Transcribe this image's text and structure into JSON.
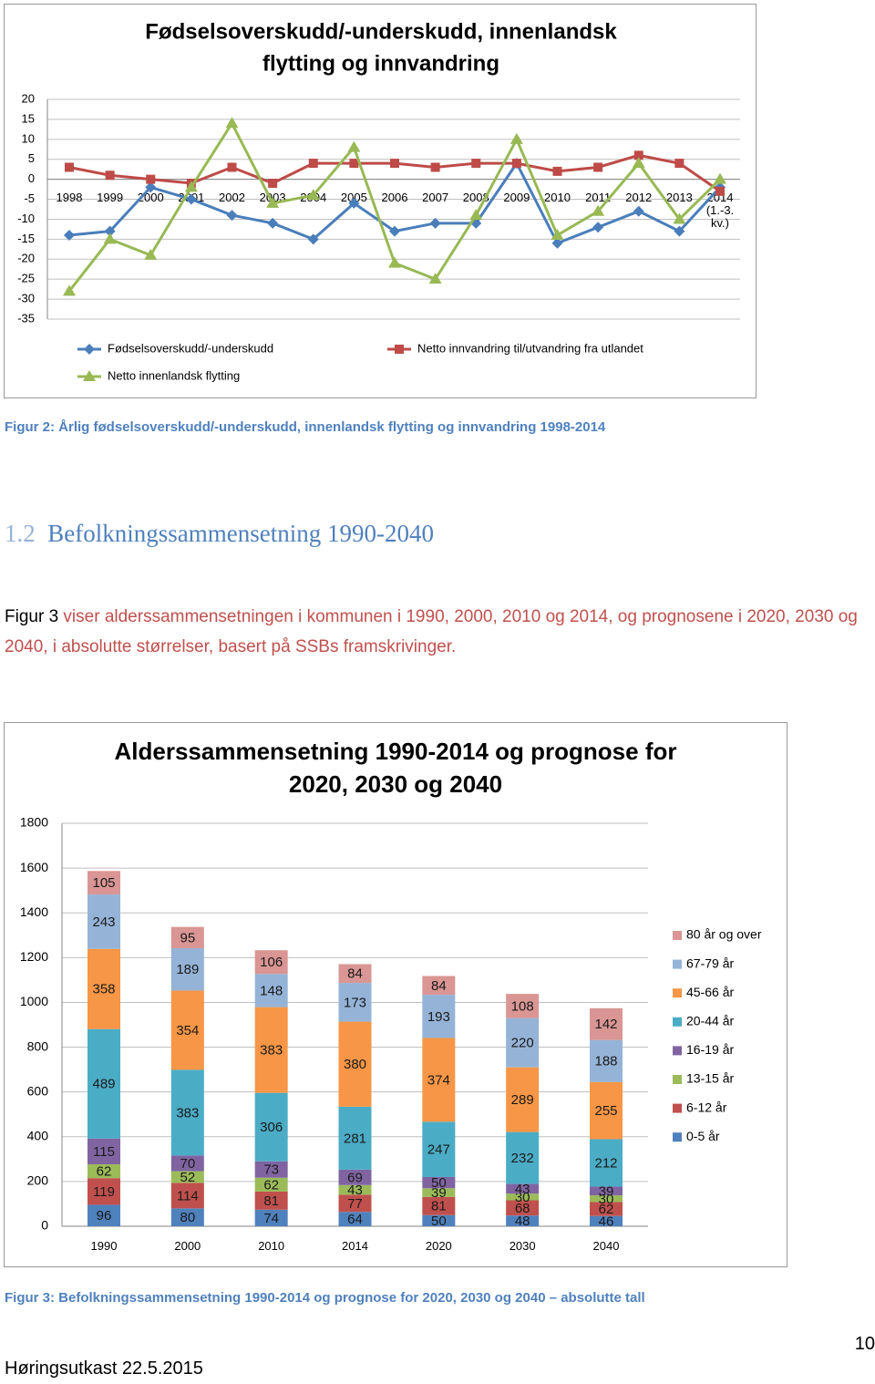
{
  "chart_data": [
    {
      "type": "line",
      "title": [
        "Fødselsoverskudd/-underskudd,  innenlandsk",
        "flytting og  innvandring"
      ],
      "categories": [
        "1998",
        "1999",
        "2000",
        "2001",
        "2002",
        "2003",
        "2004",
        "2005",
        "2006",
        "2007",
        "2008",
        "2009",
        "2010",
        "2011",
        "2012",
        "2013",
        "2014 (1.-3. kv.)"
      ],
      "series": [
        {
          "name": "Fødselsoverskudd/-underskudd",
          "color": "#4a7ebb",
          "marker": "diamond",
          "values": [
            -14,
            -13,
            -2,
            -5,
            -9,
            -11,
            -15,
            -6,
            -13,
            -11,
            -11,
            4,
            -16,
            -12,
            -8,
            -13,
            -2
          ]
        },
        {
          "name": "Netto innvandring til/utvandring fra utlandet",
          "color": "#be4b48",
          "marker": "square",
          "values": [
            3,
            1,
            0,
            -1,
            3,
            -1,
            4,
            4,
            4,
            3,
            4,
            4,
            2,
            3,
            6,
            4,
            -3
          ]
        },
        {
          "name": "Netto innenlandsk flytting",
          "color": "#98b954",
          "marker": "triangle",
          "values": [
            -28,
            -15,
            -19,
            -2,
            14,
            -6,
            -4,
            8,
            -21,
            -25,
            -9,
            10,
            -14,
            -8,
            4,
            -10,
            0
          ]
        }
      ],
      "ylim": [
        -35,
        20
      ],
      "yticks": [
        -35,
        -30,
        -25,
        -20,
        -15,
        -10,
        -5,
        0,
        5,
        10,
        15,
        20
      ],
      "grid": true
    },
    {
      "type": "bar",
      "stacked": true,
      "title": [
        "Alderssammensetning 1990-2014 og prognose for",
        "2020, 2030 og 2040"
      ],
      "categories": [
        "1990",
        "2000",
        "2010",
        "2014",
        "2020",
        "2030",
        "2040"
      ],
      "series": [
        {
          "name": "0-5 år",
          "color": "#4f81bd",
          "values": [
            96,
            80,
            74,
            64,
            50,
            48,
            46
          ]
        },
        {
          "name": "6-12 år",
          "color": "#c0504d",
          "values": [
            119,
            114,
            81,
            77,
            81,
            68,
            62
          ]
        },
        {
          "name": "13-15 år",
          "color": "#9bbb59",
          "values": [
            62,
            52,
            62,
            43,
            39,
            30,
            30
          ]
        },
        {
          "name": "16-19 år",
          "color": "#8064a2",
          "values": [
            115,
            70,
            73,
            69,
            50,
            43,
            39
          ]
        },
        {
          "name": "20-44 år",
          "color": "#4bacc6",
          "values": [
            489,
            383,
            306,
            281,
            247,
            232,
            212
          ]
        },
        {
          "name": "45-66 år",
          "color": "#f79646",
          "values": [
            358,
            354,
            383,
            380,
            374,
            289,
            255
          ]
        },
        {
          "name": "67-79 år",
          "color": "#95b3d7",
          "values": [
            243,
            189,
            148,
            173,
            193,
            220,
            188
          ]
        },
        {
          "name": "80 år og over",
          "color": "#d99694",
          "values": [
            105,
            95,
            106,
            84,
            84,
            108,
            142
          ]
        }
      ],
      "ylim": [
        0,
        1800
      ],
      "yticks": [
        0,
        200,
        400,
        600,
        800,
        1000,
        1200,
        1400,
        1600,
        1800
      ],
      "grid": true
    }
  ],
  "document": {
    "caption_1": "Figur 2: Årlig fødselsoverskudd/-underskudd, innenlandsk flytting og innvandring 1998-2014",
    "heading": {
      "number": "1.2",
      "title": "Befolkningssammensetning 1990-2040"
    },
    "paragraph": {
      "lead": "Figur 3",
      "text": "viser alderssammensetningen i kommunen i 1990, 2000, 2010 og 2014, og prognosene i 2020, 2030 og 2040, i absolutte størrelser, basert på SSBs framskrivinger."
    },
    "caption_2": "Figur 3: Befolkningssammensetning 1990-2014 og prognose for 2020, 2030 og 2040 – absolutte tall",
    "page_number": "10",
    "footer": "Høringsutkast 22.5.2015"
  }
}
